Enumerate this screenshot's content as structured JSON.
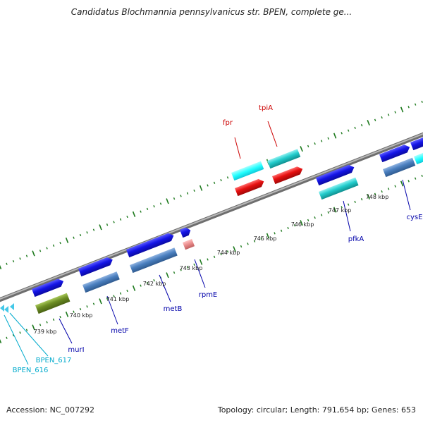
{
  "title": "Candidatus Blochmannia pennsylvanicus str. BPEN, complete ge...",
  "footer": {
    "accession": "Accession: NC_007292",
    "summary": "Topology: circular; Length: 791,654 bp; Genes: 653"
  },
  "scale_labels": [
    "739 kbp",
    "740 kbp",
    "741 kbp",
    "742 kbp",
    "743 kbp",
    "744 kbp",
    "745 kbp",
    "746 kbp",
    "747 kbp",
    "748 kbp"
  ],
  "gene_labels": {
    "fpr": "fpr",
    "tpiA": "tpiA",
    "cysE": "cysE",
    "pfkA": "pfkA",
    "rpmE": "rpmE",
    "metB": "metB",
    "metF": "metF",
    "murI": "murI",
    "BPEN_617": "BPEN_617",
    "BPEN_616": "BPEN_616"
  },
  "colors": {
    "backbone": "#8c8c8c",
    "tick": "#1e7a1e",
    "cds": "#1414e6",
    "trna_cyan": "#22cccc",
    "steelblue": "#4a7fbf",
    "olive": "#6b8c23",
    "red": "#e60f0f",
    "pink": "#e88a8a",
    "label_blue": "#0000aa",
    "label_red": "#cc0000",
    "label_cyan": "#00aacc"
  }
}
